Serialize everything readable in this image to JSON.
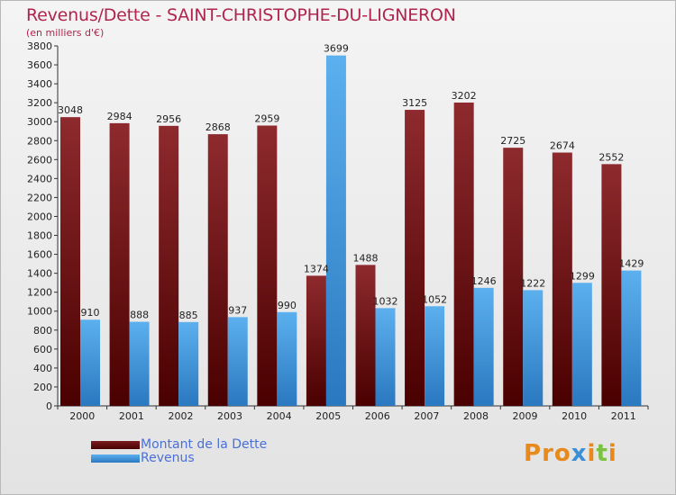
{
  "header": {
    "title": "Revenus/Dette - SAINT-CHRISTOPHE-DU-LIGNERON",
    "subtitle": "(en milliers d'€)"
  },
  "brand": {
    "text": "Proxiti",
    "letter_colors": [
      "#e8891c",
      "#e8891c",
      "#e8891c",
      "#3a8fd6",
      "#e8891c",
      "#7cc242",
      "#e8891c"
    ]
  },
  "chart_data": {
    "type": "bar",
    "title": "Revenus/Dette - SAINT-CHRISTOPHE-DU-LIGNERON",
    "subtitle": "(en milliers d'€)",
    "categories": [
      "2000",
      "2001",
      "2002",
      "2003",
      "2004",
      "2005",
      "2006",
      "2007",
      "2008",
      "2009",
      "2010",
      "2011"
    ],
    "series": [
      {
        "name": "Montant de la Dette",
        "color": "#8b1a1f",
        "values": [
          3048,
          2984,
          2956,
          2868,
          2959,
          1374,
          1488,
          3125,
          3202,
          2725,
          2674,
          2552
        ]
      },
      {
        "name": "Revenus",
        "color": "#4aa3e8",
        "values": [
          910,
          888,
          885,
          937,
          990,
          3699,
          1032,
          1052,
          1246,
          1222,
          1299,
          1429
        ]
      }
    ],
    "value_labels": [
      [
        "3048",
        "2984",
        "2956",
        "2868",
        "2959",
        "1374",
        "1488",
        "3125",
        "3202",
        "2725",
        "2674",
        "2552"
      ],
      [
        "910",
        "888",
        "885",
        "937",
        "990",
        "3699",
        "1032",
        "1052",
        "1246",
        "1222",
        "1299",
        "1429"
      ]
    ],
    "ylim": [
      0,
      3800
    ],
    "yticks": [
      0,
      200,
      400,
      600,
      800,
      1000,
      1200,
      1400,
      1600,
      1800,
      2000,
      2200,
      2400,
      2600,
      2800,
      3000,
      3200,
      3400,
      3600,
      3800
    ],
    "ytick_labels": [
      "0",
      "200",
      "400",
      "600",
      "800",
      "1000",
      "1200",
      "1400",
      "1600",
      "1800",
      "2000",
      "2200",
      "2400",
      "2600",
      "2800",
      "3000",
      "3200",
      "3400",
      "3600",
      "3800"
    ],
    "xlabel": "",
    "ylabel": "",
    "grid": false,
    "legend_position": "bottom-left"
  }
}
